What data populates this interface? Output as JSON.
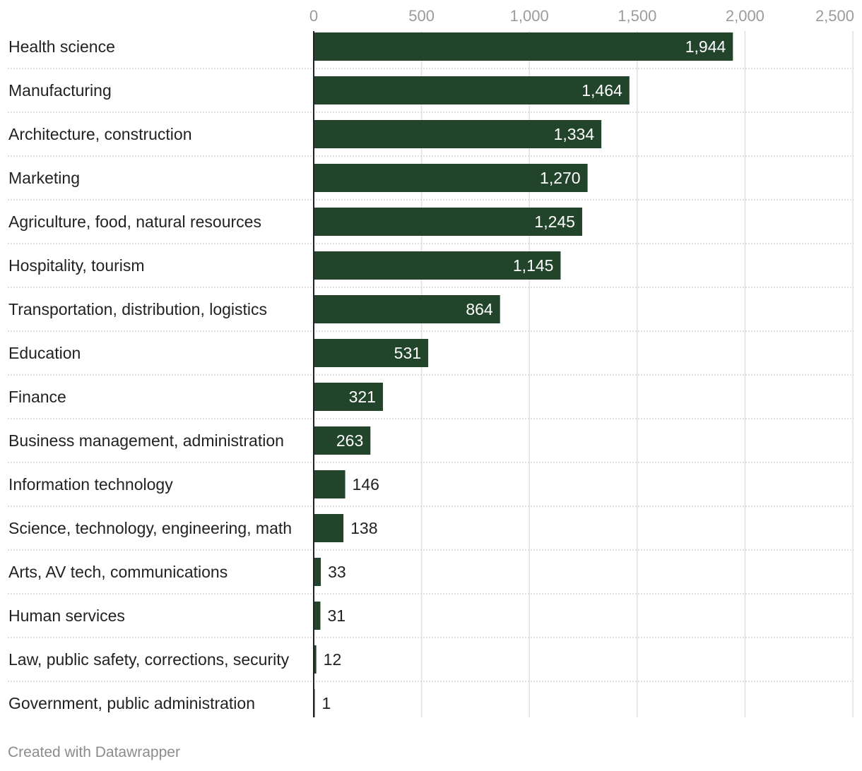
{
  "chart_data": {
    "type": "bar",
    "orientation": "horizontal",
    "title": "",
    "xlabel": "",
    "ylabel": "",
    "xlim": [
      0,
      2500
    ],
    "ticks": [
      0,
      500,
      1000,
      1500,
      2000,
      2500
    ],
    "tick_labels": [
      "0",
      "500",
      "1,000",
      "1,500",
      "2,000",
      "2,500"
    ],
    "categories": [
      "Health science",
      "Manufacturing",
      "Architecture, construction",
      "Marketing",
      "Agriculture, food, natural resources",
      "Hospitality, tourism",
      "Transportation, distribution, logistics",
      "Education",
      "Finance",
      "Business management, administration",
      "Information technology",
      "Science, technology, engineering, math",
      "Arts, AV tech, communications",
      "Human services",
      "Law, public safety, corrections, security",
      "Government, public administration"
    ],
    "values": [
      1944,
      1464,
      1334,
      1270,
      1245,
      1145,
      864,
      531,
      321,
      263,
      146,
      138,
      33,
      31,
      12,
      1
    ],
    "value_labels": [
      "1,944",
      "1,464",
      "1,334",
      "1,270",
      "1,245",
      "1,145",
      "864",
      "531",
      "321",
      "263",
      "146",
      "138",
      "33",
      "31",
      "12",
      "1"
    ],
    "grid": true,
    "bar_color": "#21442a",
    "label_inside_color": "#ffffff",
    "label_outside_color": "#222222"
  },
  "footer": {
    "credit": "Created with Datawrapper"
  }
}
